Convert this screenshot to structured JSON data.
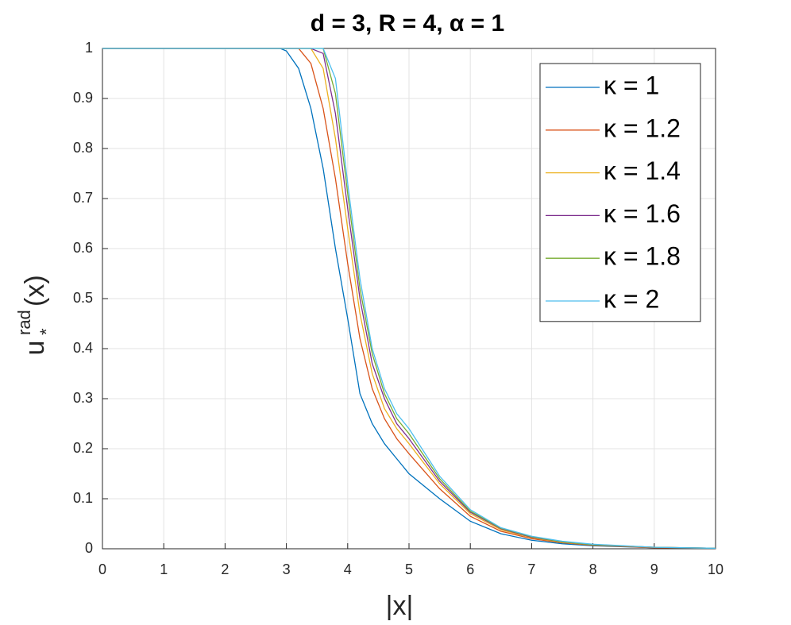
{
  "chart_data": {
    "type": "line",
    "title": "d = 3, R = 4, α = 1",
    "xlabel": "|x|",
    "ylabel": {
      "main": "u",
      "superscript": "rad",
      "subscript": "*",
      "argument": "(x)"
    },
    "x": [
      0,
      1,
      2,
      2.9,
      3,
      3.2,
      3.4,
      3.6,
      3.8,
      4,
      4.2,
      4.4,
      4.6,
      4.8,
      5,
      5.5,
      6,
      6.5,
      7,
      7.5,
      8,
      9,
      10
    ],
    "series": [
      {
        "name": "κ = 1",
        "color": "#0072bd",
        "values": [
          1,
          1,
          1,
          1,
          0.995,
          0.96,
          0.88,
          0.76,
          0.6,
          0.46,
          0.31,
          0.25,
          0.21,
          0.18,
          0.15,
          0.1,
          0.055,
          0.03,
          0.017,
          0.01,
          0.006,
          0.002,
          0.001
        ]
      },
      {
        "name": "κ = 1.2",
        "color": "#d95319",
        "values": [
          1,
          1,
          1,
          1,
          1,
          1,
          0.97,
          0.88,
          0.74,
          0.57,
          0.42,
          0.32,
          0.26,
          0.22,
          0.19,
          0.12,
          0.065,
          0.035,
          0.02,
          0.012,
          0.007,
          0.002,
          0.001
        ]
      },
      {
        "name": "κ = 1.4",
        "color": "#edb120",
        "values": [
          1,
          1,
          1,
          1,
          1,
          1,
          1,
          0.96,
          0.82,
          0.64,
          0.47,
          0.35,
          0.28,
          0.24,
          0.21,
          0.13,
          0.07,
          0.038,
          0.022,
          0.013,
          0.008,
          0.003,
          0.001
        ]
      },
      {
        "name": "κ = 1.6",
        "color": "#7e2f8e",
        "values": [
          1,
          1,
          1,
          1,
          1,
          1,
          1,
          0.99,
          0.87,
          0.68,
          0.5,
          0.37,
          0.3,
          0.25,
          0.22,
          0.135,
          0.073,
          0.04,
          0.023,
          0.014,
          0.008,
          0.003,
          0.001
        ]
      },
      {
        "name": "κ = 1.8",
        "color": "#77ac30",
        "values": [
          1,
          1,
          1,
          1,
          1,
          1,
          1,
          1,
          0.91,
          0.71,
          0.52,
          0.39,
          0.31,
          0.26,
          0.23,
          0.14,
          0.075,
          0.041,
          0.024,
          0.014,
          0.008,
          0.003,
          0.001
        ]
      },
      {
        "name": "κ = 2",
        "color": "#4dbeee",
        "values": [
          1,
          1,
          1,
          1,
          1,
          1,
          1,
          1,
          0.94,
          0.73,
          0.54,
          0.4,
          0.32,
          0.27,
          0.24,
          0.145,
          0.078,
          0.042,
          0.025,
          0.015,
          0.009,
          0.003,
          0.001
        ]
      }
    ],
    "xlim": [
      0,
      10
    ],
    "xticks": [
      0,
      1,
      2,
      3,
      4,
      5,
      6,
      7,
      8,
      9,
      10
    ],
    "ylim": [
      0,
      1
    ],
    "yticks": [
      0,
      0.1,
      0.2,
      0.3,
      0.4,
      0.5,
      0.6,
      0.7,
      0.8,
      0.9,
      1
    ],
    "grid": true,
    "legend": "top-right"
  }
}
